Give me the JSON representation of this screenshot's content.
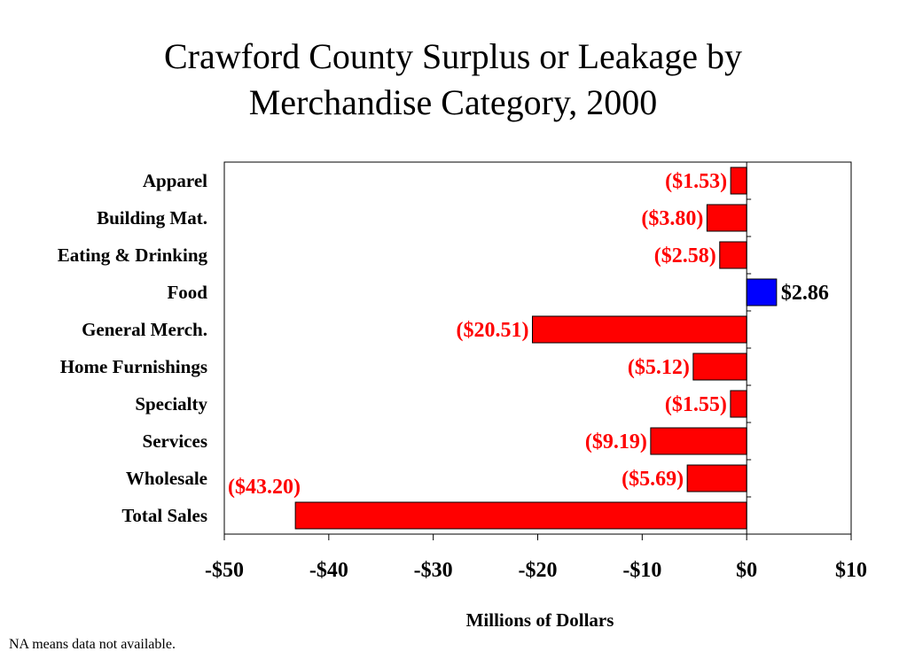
{
  "title_lines": [
    "Crawford County Surplus or Leakage by",
    "Merchandise Category, 2000"
  ],
  "footnote": "NA means data not available.",
  "colors": {
    "negative": "#ff0000",
    "positive": "#0000ff",
    "neg_label": "#ff0000",
    "pos_label": "#000000"
  },
  "chart_data": {
    "type": "bar",
    "orientation": "horizontal",
    "title": "Crawford County Surplus or Leakage by Merchandise Category, 2000",
    "xlabel": "Millions of Dollars",
    "ylabel": "",
    "xlim": [
      -50,
      10
    ],
    "xticks": [
      -50,
      -40,
      -30,
      -20,
      -10,
      0,
      10
    ],
    "xtick_labels": [
      "-$50",
      "-$40",
      "-$30",
      "-$20",
      "-$10",
      "$0",
      "$10"
    ],
    "categories": [
      "Apparel",
      "Building Mat.",
      "Eating & Drinking",
      "Food",
      "General Merch.",
      "Home Furnishings",
      "Specialty",
      "Services",
      "Wholesale",
      "Total Sales"
    ],
    "values": [
      -1.53,
      -3.8,
      -2.58,
      2.86,
      -20.51,
      -5.12,
      -1.55,
      -9.19,
      -5.69,
      -43.2
    ],
    "data_labels": [
      "($1.53)",
      "($3.80)",
      "($2.58)",
      "$2.86",
      "($20.51)",
      "($5.12)",
      "($1.55)",
      "($9.19)",
      "($5.69)",
      "($43.20)"
    ],
    "grid": false,
    "legend": "none"
  }
}
